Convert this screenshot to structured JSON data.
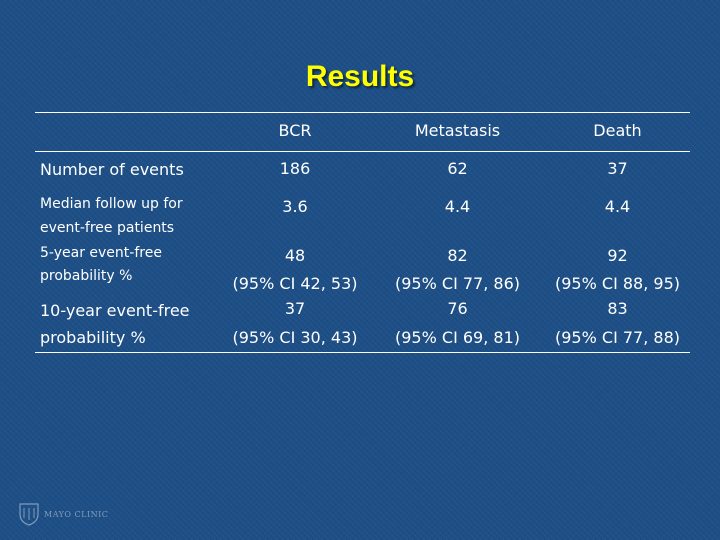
{
  "title": "Results",
  "columns": [
    "BCR",
    "Metastasis",
    "Death"
  ],
  "rows": {
    "events": {
      "label": "Number of events",
      "values": [
        "186",
        "62",
        "37"
      ]
    },
    "followup": {
      "label_lines": [
        "Median follow up for",
        "event-free patients"
      ],
      "values": [
        "3.6",
        "4.4",
        "4.4"
      ]
    },
    "five_year": {
      "label_lines": [
        "5-year event-free",
        "probability %"
      ],
      "values": [
        "48",
        "82",
        "92"
      ],
      "ci": [
        "(95% CI 42, 53)",
        "(95% CI 77, 86)",
        "(95% CI 88, 95)"
      ]
    },
    "ten_year": {
      "label_lines": [
        "10-year event-free",
        "probability %"
      ],
      "values": [
        "37",
        "76",
        "83"
      ],
      "ci": [
        "(95% CI 30, 43)",
        "(95% CI 69, 81)",
        "(95% CI 77, 88)"
      ]
    }
  },
  "logo": {
    "text": "MAYO CLINIC",
    "icon": "mayo-shield-icon"
  },
  "colors": {
    "background": "#1d4f86",
    "title": "#ffff00",
    "text": "#ffffff"
  }
}
